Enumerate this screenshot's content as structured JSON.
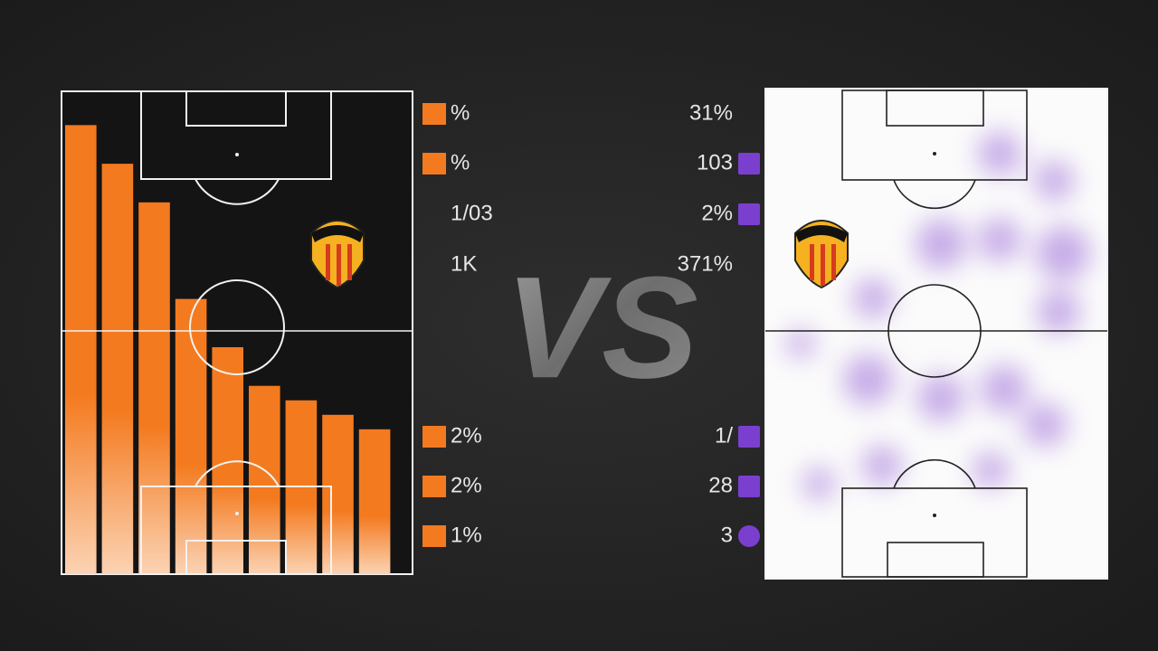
{
  "chart_data": {
    "type": "bar",
    "categories": [
      null,
      null,
      null,
      null,
      null,
      null,
      null,
      null,
      null
    ],
    "values": [
      93,
      85,
      77,
      57,
      47,
      39,
      36,
      33,
      30
    ],
    "color": "#f47a1f",
    "ylim": [
      0,
      100
    ]
  },
  "title": "VS",
  "left_stats": [
    "%",
    "%",
    "1/03",
    "1K",
    "2%",
    "2%",
    "1%"
  ],
  "right_stats": [
    "31%",
    "103",
    "2%",
    "371%",
    "1/",
    "28",
    "3"
  ]
}
